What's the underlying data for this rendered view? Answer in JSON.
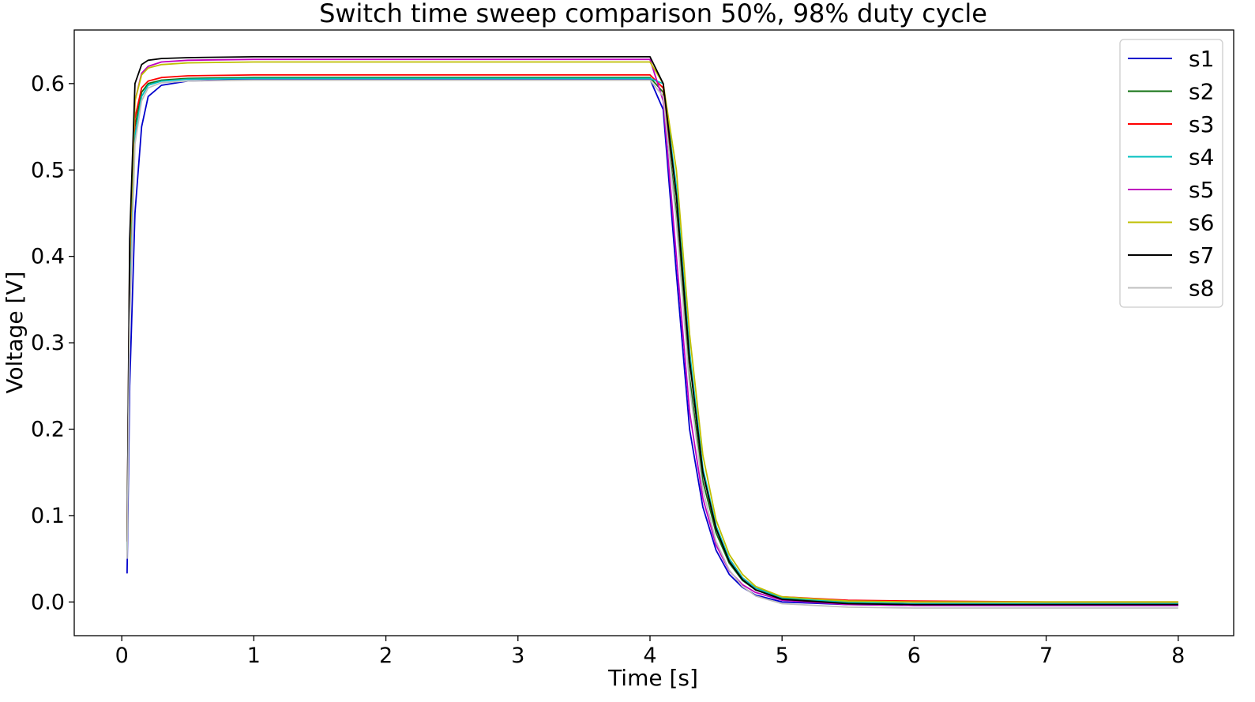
{
  "chart_data": {
    "type": "line",
    "title": "Switch time sweep comparison 50%, 98% duty cycle",
    "xlabel": "Time [s]",
    "ylabel": "Voltage [V]",
    "xlim": [
      -0.36,
      8.42
    ],
    "ylim": [
      -0.039,
      0.662
    ],
    "xticks": [
      0,
      1,
      2,
      3,
      4,
      5,
      6,
      7,
      8
    ],
    "yticks": [
      0.0,
      0.1,
      0.2,
      0.3,
      0.4,
      0.5,
      0.6
    ],
    "ytick_labels": [
      "0.0",
      "0.1",
      "0.2",
      "0.3",
      "0.4",
      "0.5",
      "0.6"
    ],
    "grid": false,
    "legend_position": "top-right",
    "series": [
      {
        "name": "s1",
        "color": "#0000cc",
        "x": [
          0.04,
          0.06,
          0.1,
          0.15,
          0.2,
          0.3,
          0.5,
          1.0,
          2.0,
          3.0,
          4.0,
          4.1,
          4.2,
          4.3,
          4.4,
          4.5,
          4.6,
          4.7,
          4.8,
          5.0,
          5.5,
          6.0,
          7.0,
          8.0
        ],
        "y": [
          0.033,
          0.25,
          0.45,
          0.55,
          0.585,
          0.598,
          0.603,
          0.605,
          0.605,
          0.605,
          0.605,
          0.57,
          0.38,
          0.2,
          0.11,
          0.06,
          0.032,
          0.017,
          0.008,
          0.0,
          -0.003,
          -0.004,
          -0.004,
          -0.004
        ]
      },
      {
        "name": "s2",
        "color": "#107010",
        "x": [
          0.04,
          0.06,
          0.1,
          0.15,
          0.2,
          0.3,
          0.5,
          1.0,
          2.0,
          3.0,
          4.0,
          4.1,
          4.2,
          4.3,
          4.4,
          4.5,
          4.6,
          4.7,
          4.8,
          5.0,
          5.5,
          6.0,
          7.0,
          8.0
        ],
        "y": [
          0.06,
          0.35,
          0.55,
          0.59,
          0.6,
          0.604,
          0.606,
          0.607,
          0.607,
          0.607,
          0.607,
          0.59,
          0.45,
          0.26,
          0.14,
          0.08,
          0.045,
          0.025,
          0.014,
          0.004,
          -0.001,
          -0.002,
          -0.002,
          -0.002
        ]
      },
      {
        "name": "s3",
        "color": "#ff0000",
        "x": [
          0.04,
          0.06,
          0.1,
          0.15,
          0.2,
          0.3,
          0.5,
          1.0,
          2.0,
          3.0,
          4.0,
          4.1,
          4.2,
          4.3,
          4.4,
          4.5,
          4.6,
          4.7,
          4.8,
          5.0,
          5.5,
          6.0,
          7.0,
          8.0
        ],
        "y": [
          0.06,
          0.36,
          0.56,
          0.595,
          0.603,
          0.607,
          0.609,
          0.61,
          0.61,
          0.61,
          0.61,
          0.595,
          0.47,
          0.28,
          0.15,
          0.085,
          0.05,
          0.028,
          0.016,
          0.006,
          0.002,
          0.001,
          0.0,
          0.0
        ]
      },
      {
        "name": "s4",
        "color": "#00bfbf",
        "x": [
          0.04,
          0.06,
          0.1,
          0.15,
          0.2,
          0.3,
          0.5,
          1.0,
          2.0,
          3.0,
          4.0,
          4.1,
          4.2,
          4.3,
          4.4,
          4.5,
          4.6,
          4.7,
          4.8,
          5.0,
          5.5,
          6.0,
          7.0,
          8.0
        ],
        "y": [
          0.06,
          0.34,
          0.54,
          0.585,
          0.598,
          0.603,
          0.605,
          0.606,
          0.606,
          0.606,
          0.606,
          0.6,
          0.48,
          0.29,
          0.155,
          0.088,
          0.05,
          0.028,
          0.016,
          0.005,
          0.0,
          -0.002,
          -0.002,
          -0.002
        ]
      },
      {
        "name": "s5",
        "color": "#bf00bf",
        "x": [
          0.04,
          0.06,
          0.1,
          0.15,
          0.2,
          0.3,
          0.5,
          1.0,
          2.0,
          3.0,
          4.0,
          4.1,
          4.2,
          4.3,
          4.4,
          4.5,
          4.6,
          4.7,
          4.8,
          5.0,
          5.5,
          6.0,
          7.0,
          8.0
        ],
        "y": [
          0.07,
          0.4,
          0.58,
          0.612,
          0.62,
          0.625,
          0.627,
          0.628,
          0.628,
          0.628,
          0.628,
          0.58,
          0.4,
          0.22,
          0.12,
          0.066,
          0.036,
          0.02,
          0.011,
          0.002,
          -0.003,
          -0.004,
          -0.004,
          -0.004
        ]
      },
      {
        "name": "s6",
        "color": "#bfbf00",
        "x": [
          0.04,
          0.06,
          0.1,
          0.15,
          0.2,
          0.3,
          0.5,
          1.0,
          2.0,
          3.0,
          4.0,
          4.1,
          4.2,
          4.3,
          4.4,
          4.5,
          4.6,
          4.7,
          4.8,
          5.0,
          5.5,
          6.0,
          7.0,
          8.0
        ],
        "y": [
          0.07,
          0.4,
          0.58,
          0.61,
          0.618,
          0.622,
          0.624,
          0.625,
          0.625,
          0.625,
          0.625,
          0.6,
          0.5,
          0.31,
          0.17,
          0.095,
          0.055,
          0.032,
          0.018,
          0.006,
          0.001,
          0.0,
          0.0,
          0.0
        ]
      },
      {
        "name": "s7",
        "color": "#000000",
        "x": [
          0.04,
          0.06,
          0.1,
          0.15,
          0.2,
          0.3,
          0.5,
          1.0,
          2.0,
          3.0,
          4.0,
          4.1,
          4.2,
          4.3,
          4.4,
          4.5,
          4.6,
          4.7,
          4.8,
          5.0,
          5.5,
          6.0,
          7.0,
          8.0
        ],
        "y": [
          0.07,
          0.42,
          0.6,
          0.622,
          0.627,
          0.629,
          0.63,
          0.631,
          0.631,
          0.631,
          0.631,
          0.6,
          0.47,
          0.28,
          0.15,
          0.085,
          0.047,
          0.026,
          0.014,
          0.003,
          -0.002,
          -0.003,
          -0.003,
          -0.003
        ]
      },
      {
        "name": "s8",
        "color": "#bfbfbf",
        "x": [
          0.04,
          0.06,
          0.1,
          0.15,
          0.2,
          0.3,
          0.5,
          1.0,
          2.0,
          3.0,
          4.0,
          4.1,
          4.2,
          4.3,
          4.4,
          4.5,
          4.6,
          4.7,
          4.8,
          5.0,
          5.5,
          6.0,
          7.0,
          8.0
        ],
        "y": [
          0.05,
          0.32,
          0.53,
          0.58,
          0.595,
          0.601,
          0.603,
          0.604,
          0.604,
          0.604,
          0.604,
          0.585,
          0.44,
          0.25,
          0.13,
          0.07,
          0.037,
          0.018,
          0.007,
          -0.002,
          -0.006,
          -0.007,
          -0.007,
          -0.007
        ]
      }
    ]
  }
}
